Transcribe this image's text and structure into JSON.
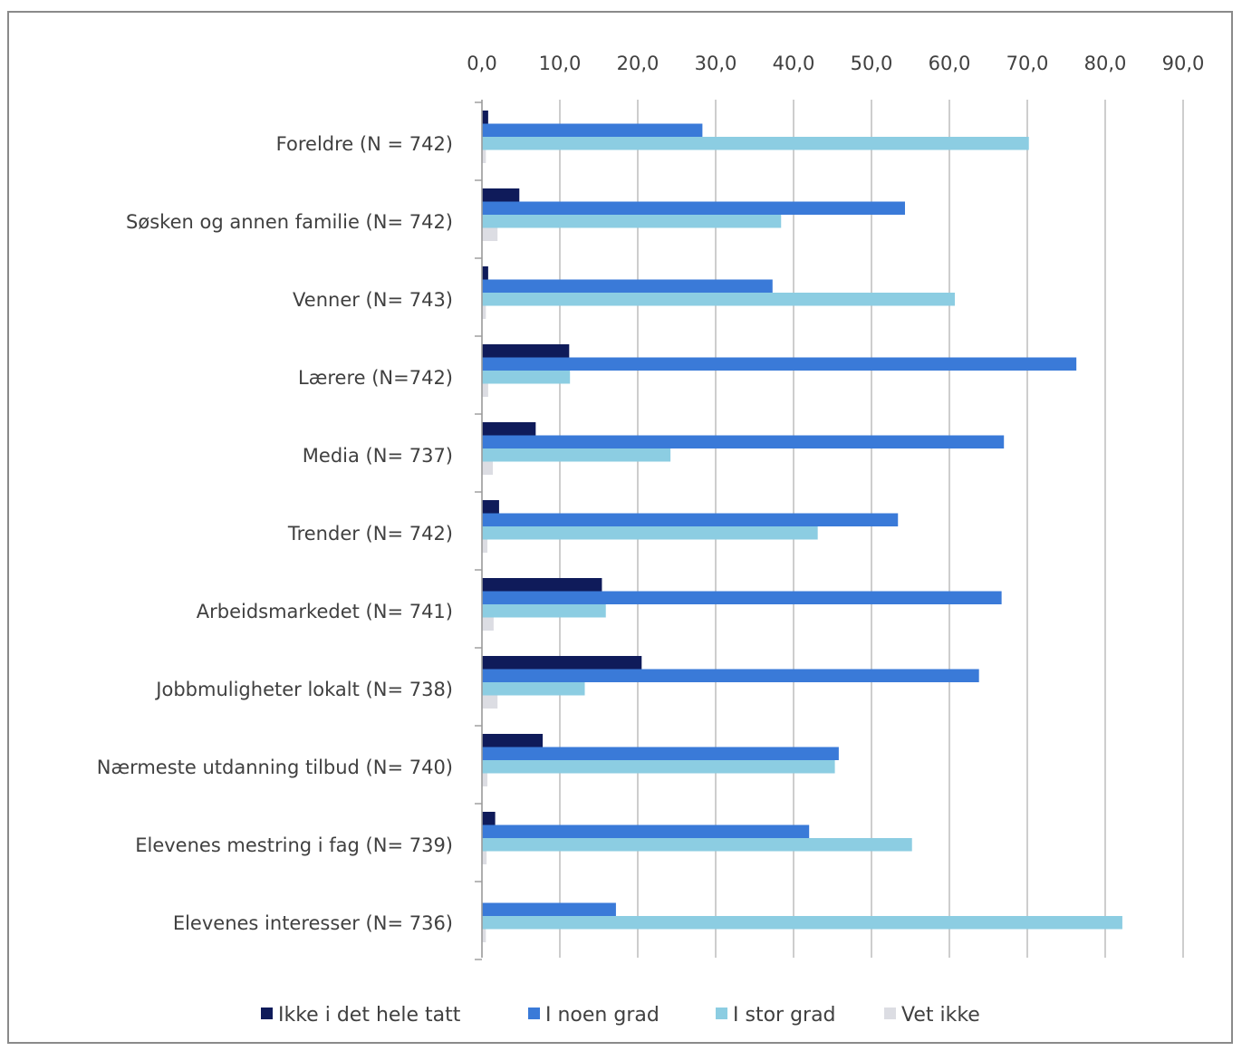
{
  "chart_data": {
    "type": "bar",
    "orientation": "horizontal",
    "xlim": [
      0,
      90
    ],
    "x_ticks": [
      "0,0",
      "10,0",
      "20,0",
      "30,0",
      "40,0",
      "50,0",
      "60,0",
      "70,0",
      "80,0",
      "90,0"
    ],
    "x_tick_values": [
      0,
      10,
      20,
      30,
      40,
      50,
      60,
      70,
      80,
      90
    ],
    "x_axis_position": "top",
    "grid": "vertical",
    "legend_position": "bottom",
    "categories": [
      "Foreldre (N = 742)",
      "Søsken og annen familie (N= 742)",
      "Venner (N= 743)",
      "Lærere (N=742)",
      "Media (N= 737)",
      "Trender (N= 742)",
      "Arbeidsmarkedet (N= 741)",
      "Jobbmuligheter lokalt (N= 738)",
      "Nærmeste utdanning tilbud (N= 740)",
      "Elevenes mestring i fag (N= 739)",
      "Elevenes interesser (N= 736)"
    ],
    "series": [
      {
        "name": "Ikke i det hele tatt",
        "color": "#0f1b5a",
        "values": [
          0.8,
          4.8,
          0.8,
          11.2,
          6.9,
          2.2,
          15.4,
          20.5,
          7.8,
          1.7,
          0.0
        ]
      },
      {
        "name": "I noen grad",
        "color": "#3a7ad8",
        "values": [
          28.3,
          54.3,
          37.3,
          76.3,
          67.0,
          53.4,
          66.7,
          63.8,
          45.8,
          42.0,
          17.2
        ]
      },
      {
        "name": "I stor grad",
        "color": "#8ccde2",
        "values": [
          70.2,
          38.4,
          60.7,
          11.3,
          24.2,
          43.1,
          15.9,
          13.2,
          45.3,
          55.2,
          82.2
        ]
      },
      {
        "name": "Vet ikke",
        "color": "#dcdde3",
        "values": [
          0.5,
          2.0,
          0.5,
          0.8,
          1.4,
          0.7,
          1.5,
          2.0,
          0.7,
          0.6,
          0.5
        ]
      }
    ]
  }
}
